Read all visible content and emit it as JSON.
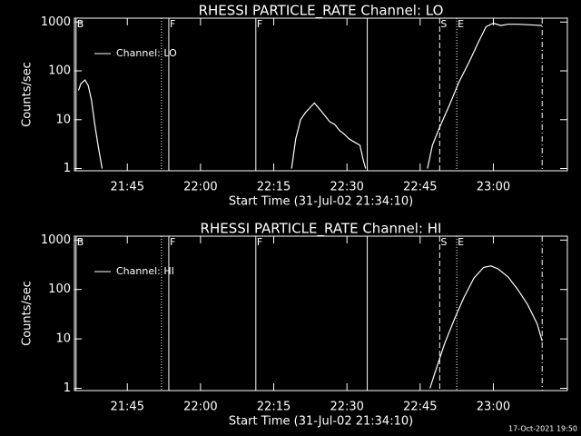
{
  "chart_data": [
    {
      "type": "line",
      "title": "RHESSI PARTICLE_RATE Channel: LO",
      "x_label": "Start Time (31-Jul-02 21:34:10)",
      "y_label": "Counts/sec",
      "xlim": [
        "21:34:10",
        "23:15:10"
      ],
      "xticks": [
        "21:45",
        "22:00",
        "22:15",
        "22:30",
        "22:45",
        "23:00"
      ],
      "ylim": [
        0.9,
        1200
      ],
      "yticks": [
        1,
        10,
        100,
        1000
      ],
      "log_y": true,
      "series": [
        {
          "name": "Channel: LO",
          "color": "#ffffff",
          "x": [
            "21:35:00",
            "21:35:30",
            "21:36:20",
            "21:37:00",
            "21:37:40",
            "21:38:20",
            "21:39:00",
            "21:39:50",
            null,
            "22:18:40",
            "22:19:30",
            "22:20:30",
            "22:21:30",
            "22:22:30",
            "22:23:20",
            "22:24:30",
            "22:25:30",
            "22:26:30",
            "22:27:30",
            "22:28:30",
            "22:29:30",
            "22:30:30",
            "22:31:30",
            "22:32:40",
            "22:33:20",
            "22:33:50",
            null,
            "22:46:30",
            "22:47:30",
            "22:49:00",
            "22:51:00",
            "22:53:00",
            "22:55:00",
            "22:57:00",
            "22:58:30",
            "23:00:00",
            "23:01:30",
            "23:03:00",
            "23:05:00",
            "23:07:00",
            "23:09:00",
            "23:10:00"
          ],
          "values": [
            40,
            55,
            65,
            50,
            25,
            8,
            3,
            1,
            null,
            1,
            4,
            10,
            14,
            18,
            22,
            16,
            12,
            9,
            8,
            6,
            5,
            4,
            3.5,
            3,
            1.5,
            1,
            null,
            1,
            3,
            7,
            20,
            60,
            150,
            400,
            800,
            950,
            850,
            900,
            900,
            880,
            860,
            850
          ]
        }
      ],
      "markers": [
        {
          "x": "21:34:30",
          "label": "B",
          "style": "solid"
        },
        {
          "x": "21:52:00",
          "style": "dotted"
        },
        {
          "x": "21:53:30",
          "label": "F",
          "style": "solid"
        },
        {
          "x": "22:11:20",
          "label": "F",
          "style": "solid"
        },
        {
          "x": "22:34:10",
          "style": "solid"
        },
        {
          "x": "22:49:00",
          "label": "S",
          "style": "dashed"
        },
        {
          "x": "22:52:30",
          "label": "E",
          "style": "dotted"
        },
        {
          "x": "23:10:00",
          "style": "dashdot"
        }
      ]
    },
    {
      "type": "line",
      "title": "RHESSI PARTICLE_RATE Channel: HI",
      "x_label": "Start Time (31-Jul-02 21:34:10)",
      "y_label": "Counts/sec",
      "xlim": [
        "21:34:10",
        "23:15:10"
      ],
      "xticks": [
        "21:45",
        "22:00",
        "22:15",
        "22:30",
        "22:45",
        "23:00"
      ],
      "ylim": [
        0.9,
        1200
      ],
      "yticks": [
        1,
        10,
        100,
        1000
      ],
      "log_y": true,
      "series": [
        {
          "name": "Channel: HI",
          "color": "#ffffff",
          "x": [
            "22:47:00",
            "22:48:00",
            "22:50:00",
            "22:52:00",
            "22:54:00",
            "22:56:00",
            "22:58:00",
            "22:59:30",
            "23:01:00",
            "23:03:00",
            "23:05:00",
            "23:07:00",
            "23:09:00",
            "23:10:00"
          ],
          "values": [
            1,
            2,
            8,
            25,
            70,
            170,
            280,
            300,
            260,
            180,
            100,
            50,
            20,
            9
          ]
        }
      ],
      "markers": [
        {
          "x": "21:34:30",
          "label": "B",
          "style": "solid"
        },
        {
          "x": "21:52:00",
          "style": "dotted"
        },
        {
          "x": "21:53:30",
          "label": "F",
          "style": "solid"
        },
        {
          "x": "22:11:20",
          "label": "F",
          "style": "solid"
        },
        {
          "x": "22:34:10",
          "style": "solid"
        },
        {
          "x": "22:49:00",
          "label": "S",
          "style": "dashed"
        },
        {
          "x": "22:52:30",
          "label": "E",
          "style": "dotted"
        },
        {
          "x": "23:10:00",
          "style": "dashdot"
        }
      ]
    }
  ],
  "footer": "17-Oct-2021 19:50"
}
